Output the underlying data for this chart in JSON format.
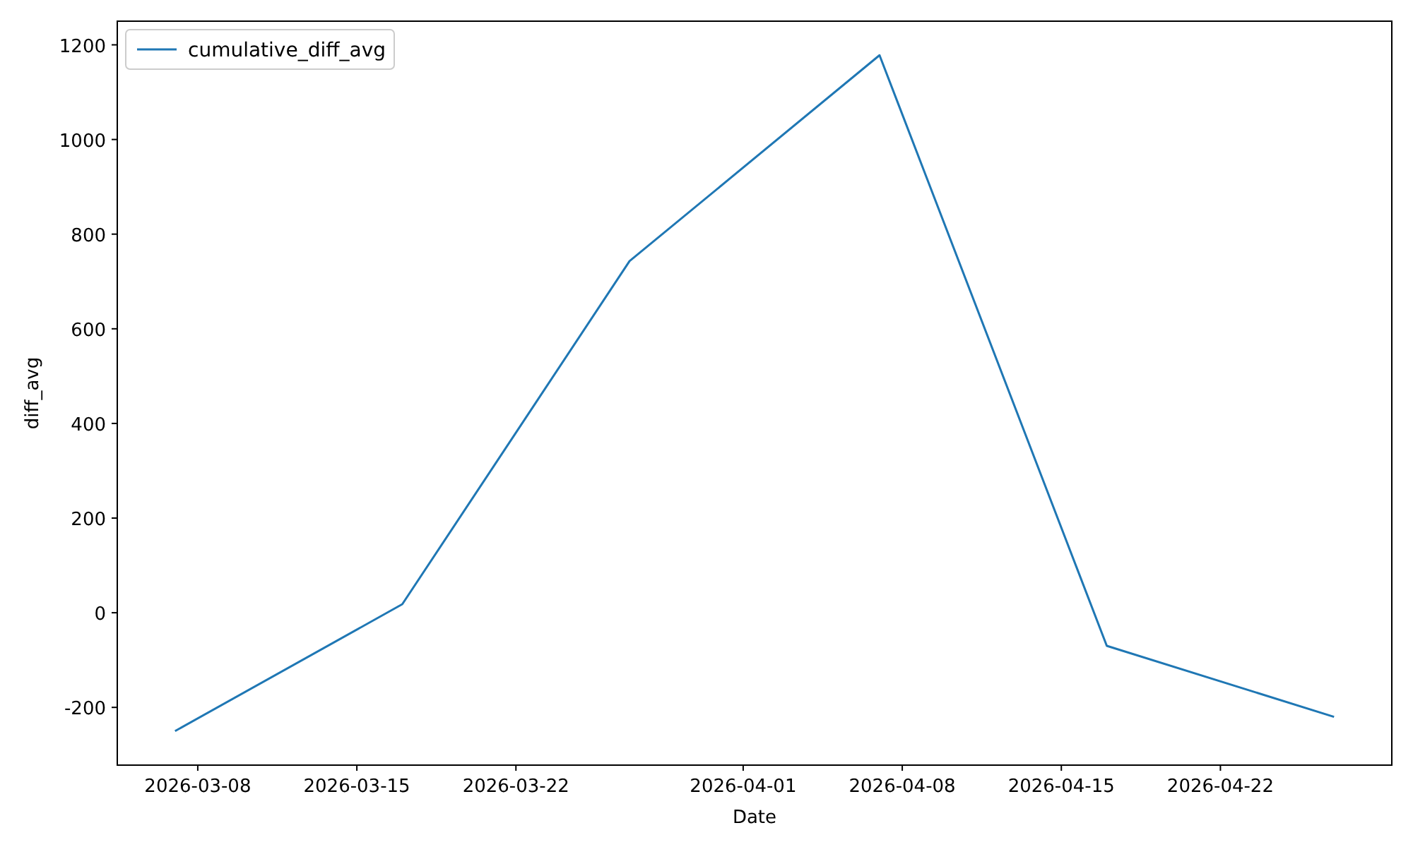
{
  "chart_data": {
    "type": "line",
    "xlabel": "Date",
    "ylabel": "diff_avg",
    "x": [
      "2026-03-07",
      "2026-03-17",
      "2026-03-27",
      "2026-04-07",
      "2026-04-17",
      "2026-04-27"
    ],
    "series": [
      {
        "name": "cumulative_diff_avg",
        "color": "#1f77b4",
        "values": [
          -250,
          18,
          743,
          1178,
          -70,
          -220
        ]
      }
    ],
    "xlim": [
      "2026-03-04T11:00",
      "2026-04-29T13:00"
    ],
    "xticks": [
      "2026-03-08",
      "2026-03-15",
      "2026-03-22",
      "2026-04-01",
      "2026-04-08",
      "2026-04-15",
      "2026-04-22"
    ],
    "ylim": [
      -322,
      1250
    ],
    "yticks": [
      -200,
      0,
      200,
      400,
      600,
      800,
      1000,
      1200
    ],
    "legend": "top left",
    "grid": false,
    "marker": "none",
    "line_style": "solid"
  }
}
